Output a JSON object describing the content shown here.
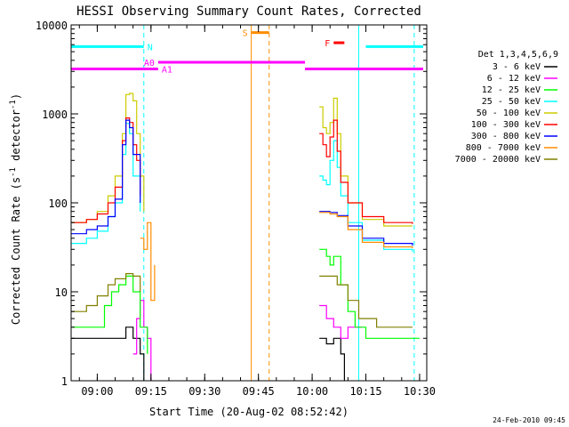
{
  "chart_data": {
    "type": "line",
    "title": "HESSI Observing Summary Count Rates, Corrected",
    "xlabel": "Start Time (20-Aug-02 08:52:42)",
    "ylabel": "Corrected Count Rate (s",
    "ylabel_exp1": "-1",
    "ylabel_mid": " detector",
    "ylabel_exp2": "-1",
    "ylabel_end": ")",
    "y_scale": "log",
    "ylim": [
      1,
      10000
    ],
    "xlim": [
      "08:52:42",
      "10:32:00"
    ],
    "x_ticks": [
      "09:00",
      "09:15",
      "09:30",
      "09:45",
      "10:00",
      "10:15",
      "10:30"
    ],
    "y_ticks": [
      "1",
      "10",
      "100",
      "1000",
      "10000"
    ],
    "footer_date": "24-Feb-2010 09:45",
    "legend": {
      "title": "Det 1,3,4,5,6,9",
      "placement": "right",
      "entries": [
        {
          "label": "3 - 6 keV",
          "color": "#000000"
        },
        {
          "label": "6 - 12 keV",
          "color": "#ff00ff"
        },
        {
          "label": "12 - 25 keV",
          "color": "#00ff00"
        },
        {
          "label": "25 - 50 keV",
          "color": "#00ffff"
        },
        {
          "label": "50 - 100 keV",
          "color": "#cccc00"
        },
        {
          "label": "100 - 300 keV",
          "color": "#ff0000"
        },
        {
          "label": "300 - 800 keV",
          "color": "#0000ff"
        },
        {
          "label": "800 - 7000 keV",
          "color": "#ff8c00"
        },
        {
          "label": "7000 - 20000 keV",
          "color": "#808000"
        }
      ]
    },
    "flag_bars": [
      {
        "label": "N",
        "color": "#00ffff",
        "y": 5700,
        "segments": [
          [
            "08:52:42",
            "09:13:00"
          ],
          [
            "10:15:00",
            "10:31:00"
          ]
        ]
      },
      {
        "label": "A0",
        "color": "#ff00ff",
        "y": 3800,
        "segments": [
          [
            "09:17:00",
            "09:58:00"
          ]
        ]
      },
      {
        "label": "A1",
        "color": "#ff00ff",
        "y": 3200,
        "segments": [
          [
            "08:52:42",
            "09:17:00"
          ],
          [
            "09:58:00",
            "10:31:00"
          ]
        ]
      },
      {
        "label": "S",
        "color": "#ff8c00",
        "y": 8200,
        "segments": [
          [
            "09:43:00",
            "09:48:00"
          ]
        ]
      },
      {
        "label": "F",
        "color": "#ff0000",
        "y": 6300,
        "segments": [
          [
            "10:06:00",
            "10:09:00"
          ]
        ]
      }
    ],
    "vlines": [
      {
        "x": "08:52:42",
        "color": "#00ffff",
        "style": "solid"
      },
      {
        "x": "09:13:00",
        "color": "#00ffff",
        "style": "dashed"
      },
      {
        "x": "09:43:00",
        "color": "#ff8c00",
        "style": "solid"
      },
      {
        "x": "09:48:00",
        "color": "#ff8c00",
        "style": "dashed"
      },
      {
        "x": "10:13:00",
        "color": "#00ffff",
        "style": "solid"
      },
      {
        "x": "10:28:30",
        "color": "#00ffff",
        "style": "dashed"
      }
    ],
    "series": [
      {
        "name": "3 - 6 keV",
        "color": "#000000",
        "segments": [
          [
            [
              "08:52:42",
              3
            ],
            [
              "09:00",
              3
            ],
            [
              "09:05",
              3
            ],
            [
              "09:08",
              4
            ],
            [
              "09:10",
              3
            ],
            [
              "09:12",
              2
            ],
            [
              "09:13",
              1
            ]
          ],
          [
            [
              "10:02",
              3
            ],
            [
              "10:04",
              2.6
            ],
            [
              "10:06",
              3
            ],
            [
              "10:08",
              2
            ],
            [
              "10:09",
              1
            ]
          ]
        ]
      },
      {
        "name": "6 - 12 keV",
        "color": "#ff00ff",
        "segments": [
          [
            [
              "09:10",
              2
            ],
            [
              "09:11",
              5
            ],
            [
              "09:12",
              8
            ],
            [
              "09:13",
              4
            ],
            [
              "09:14",
              3
            ],
            [
              "09:15",
              1
            ]
          ],
          [
            [
              "10:02",
              7
            ],
            [
              "10:04",
              5
            ],
            [
              "10:06",
              4
            ],
            [
              "10:08",
              3
            ],
            [
              "10:10",
              4
            ],
            [
              "10:14",
              4
            ]
          ]
        ]
      },
      {
        "name": "12 - 25 keV",
        "color": "#00ff00",
        "segments": [
          [
            [
              "08:52:42",
              4
            ],
            [
              "09:00",
              4
            ],
            [
              "09:02",
              7
            ],
            [
              "09:04",
              10
            ],
            [
              "09:06",
              12
            ],
            [
              "09:08",
              15
            ],
            [
              "09:10",
              10
            ],
            [
              "09:12",
              4
            ],
            [
              "09:14",
              2
            ]
          ],
          [
            [
              "10:02",
              30
            ],
            [
              "10:04",
              25
            ],
            [
              "10:05",
              20
            ],
            [
              "10:06",
              25
            ],
            [
              "10:08",
              12
            ],
            [
              "10:10",
              6
            ],
            [
              "10:12",
              4
            ],
            [
              "10:15",
              3
            ],
            [
              "10:20",
              3
            ],
            [
              "10:30",
              3
            ]
          ]
        ]
      },
      {
        "name": "25 - 50 keV",
        "color": "#00ffff",
        "segments": [
          [
            [
              "08:52:42",
              35
            ],
            [
              "08:57",
              40
            ],
            [
              "09:00",
              48
            ],
            [
              "09:03",
              70
            ],
            [
              "09:05",
              100
            ],
            [
              "09:07",
              350
            ],
            [
              "09:08",
              780
            ],
            [
              "09:09",
              600
            ],
            [
              "09:10",
              200
            ],
            [
              "09:12",
              80
            ]
          ],
          [
            [
              "10:02",
              200
            ],
            [
              "10:03",
              180
            ],
            [
              "10:04",
              160
            ],
            [
              "10:05",
              300
            ],
            [
              "10:06",
              500
            ],
            [
              "10:07",
              250
            ],
            [
              "10:08",
              120
            ],
            [
              "10:10",
              60
            ],
            [
              "10:14",
              38
            ],
            [
              "10:20",
              30
            ],
            [
              "10:28",
              28
            ]
          ]
        ]
      },
      {
        "name": "50 - 100 keV",
        "color": "#cccc00",
        "segments": [
          [
            [
              "08:52:42",
              60
            ],
            [
              "08:57",
              65
            ],
            [
              "09:00",
              80
            ],
            [
              "09:03",
              120
            ],
            [
              "09:05",
              200
            ],
            [
              "09:07",
              600
            ],
            [
              "09:08",
              1650
            ],
            [
              "09:09",
              1700
            ],
            [
              "09:10",
              1400
            ],
            [
              "09:11",
              600
            ],
            [
              "09:12",
              200
            ],
            [
              "09:13",
              80
            ]
          ],
          [
            [
              "10:02",
              1200
            ],
            [
              "10:03",
              700
            ],
            [
              "10:04",
              600
            ],
            [
              "10:05",
              800
            ],
            [
              "10:06",
              1500
            ],
            [
              "10:07",
              600
            ],
            [
              "10:08",
              200
            ],
            [
              "10:10",
              100
            ],
            [
              "10:14",
              65
            ],
            [
              "10:20",
              55
            ],
            [
              "10:28",
              55
            ]
          ]
        ]
      },
      {
        "name": "100 - 300 keV",
        "color": "#ff0000",
        "segments": [
          [
            [
              "08:52:42",
              60
            ],
            [
              "08:57",
              65
            ],
            [
              "09:00",
              75
            ],
            [
              "09:03",
              100
            ],
            [
              "09:05",
              150
            ],
            [
              "09:07",
              500
            ],
            [
              "09:08",
              900
            ],
            [
              "09:09",
              800
            ],
            [
              "09:10",
              450
            ],
            [
              "09:11",
              300
            ],
            [
              "09:12",
              120
            ]
          ],
          [
            [
              "10:02",
              600
            ],
            [
              "10:03",
              450
            ],
            [
              "10:04",
              330
            ],
            [
              "10:05",
              550
            ],
            [
              "10:06",
              850
            ],
            [
              "10:07",
              380
            ],
            [
              "10:08",
              170
            ],
            [
              "10:10",
              100
            ],
            [
              "10:14",
              70
            ],
            [
              "10:20",
              60
            ],
            [
              "10:28",
              58
            ]
          ]
        ]
      },
      {
        "name": "300 - 800 keV",
        "color": "#0000ff",
        "segments": [
          [
            [
              "08:52:42",
              45
            ],
            [
              "08:57",
              50
            ],
            [
              "09:00",
              55
            ],
            [
              "09:03",
              70
            ],
            [
              "09:05",
              110
            ],
            [
              "09:07",
              450
            ],
            [
              "09:08",
              850
            ],
            [
              "09:09",
              700
            ],
            [
              "09:10",
              350
            ],
            [
              "09:12",
              100
            ]
          ],
          [
            [
              "10:02",
              80
            ],
            [
              "10:05",
              78
            ],
            [
              "10:07",
              72
            ],
            [
              "10:10",
              55
            ],
            [
              "10:14",
              40
            ],
            [
              "10:20",
              35
            ],
            [
              "10:28",
              33
            ]
          ]
        ]
      },
      {
        "name": "800 - 7000 keV",
        "color": "#ff8c00",
        "segments": [
          [
            [
              "09:12",
              40
            ],
            [
              "09:13",
              30
            ],
            [
              "09:14",
              60
            ],
            [
              "09:15",
              8
            ],
            [
              "09:16",
              20
            ]
          ],
          [
            [
              "10:02",
              78
            ],
            [
              "10:05",
              75
            ],
            [
              "10:07",
              70
            ],
            [
              "10:10",
              50
            ],
            [
              "10:14",
              36
            ],
            [
              "10:20",
              32
            ],
            [
              "10:28",
              31
            ]
          ]
        ]
      },
      {
        "name": "7000 - 20000 keV",
        "color": "#808000",
        "segments": [
          [
            [
              "08:52:42",
              6
            ],
            [
              "08:57",
              7
            ],
            [
              "09:00",
              9
            ],
            [
              "09:03",
              12
            ],
            [
              "09:05",
              14
            ],
            [
              "09:08",
              16
            ],
            [
              "09:10",
              15
            ],
            [
              "09:12",
              10
            ]
          ],
          [
            [
              "10:02",
              15
            ],
            [
              "10:05",
              15
            ],
            [
              "10:07",
              12
            ],
            [
              "10:10",
              8
            ],
            [
              "10:13",
              5
            ],
            [
              "10:18",
              4
            ],
            [
              "10:28",
              4
            ]
          ]
        ]
      }
    ]
  }
}
